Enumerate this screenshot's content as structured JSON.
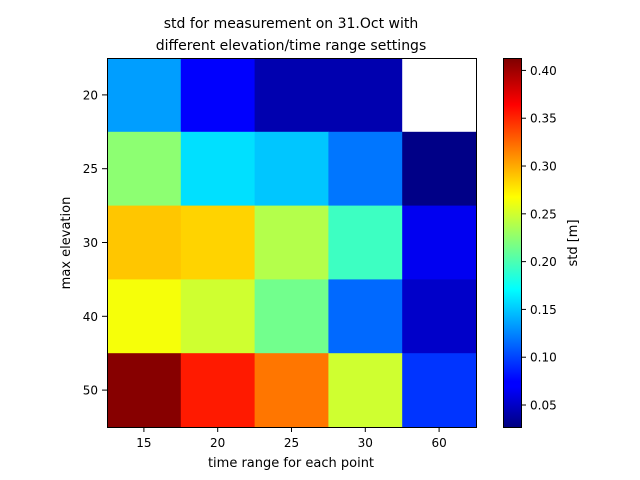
{
  "chart_data": {
    "type": "heatmap",
    "title": "std for measurement on 31.Oct with\ndifferent elevation/time range settings",
    "xlabel": "time range for each point",
    "ylabel": "max elevation",
    "x_categories": [
      "15",
      "20",
      "25",
      "30",
      "60"
    ],
    "y_categories": [
      "20",
      "25",
      "30",
      "40",
      "50"
    ],
    "values": [
      [
        0.135,
        0.075,
        0.045,
        0.045,
        null
      ],
      [
        0.225,
        0.16,
        0.15,
        0.12,
        0.03
      ],
      [
        0.29,
        0.285,
        0.24,
        0.195,
        0.07
      ],
      [
        0.265,
        0.25,
        0.215,
        0.115,
        0.055
      ],
      [
        0.41,
        0.355,
        0.32,
        0.25,
        0.095
      ]
    ],
    "missing_cell_color": "#ffffff",
    "colormap": "jet",
    "colorbar": {
      "label": "std [m]",
      "range": [
        0.027,
        0.413
      ],
      "ticks": [
        "0.05",
        "0.10",
        "0.15",
        "0.20",
        "0.25",
        "0.30",
        "0.35",
        "0.40"
      ],
      "tick_values": [
        0.05,
        0.1,
        0.15,
        0.2,
        0.25,
        0.3,
        0.35,
        0.4
      ]
    }
  }
}
